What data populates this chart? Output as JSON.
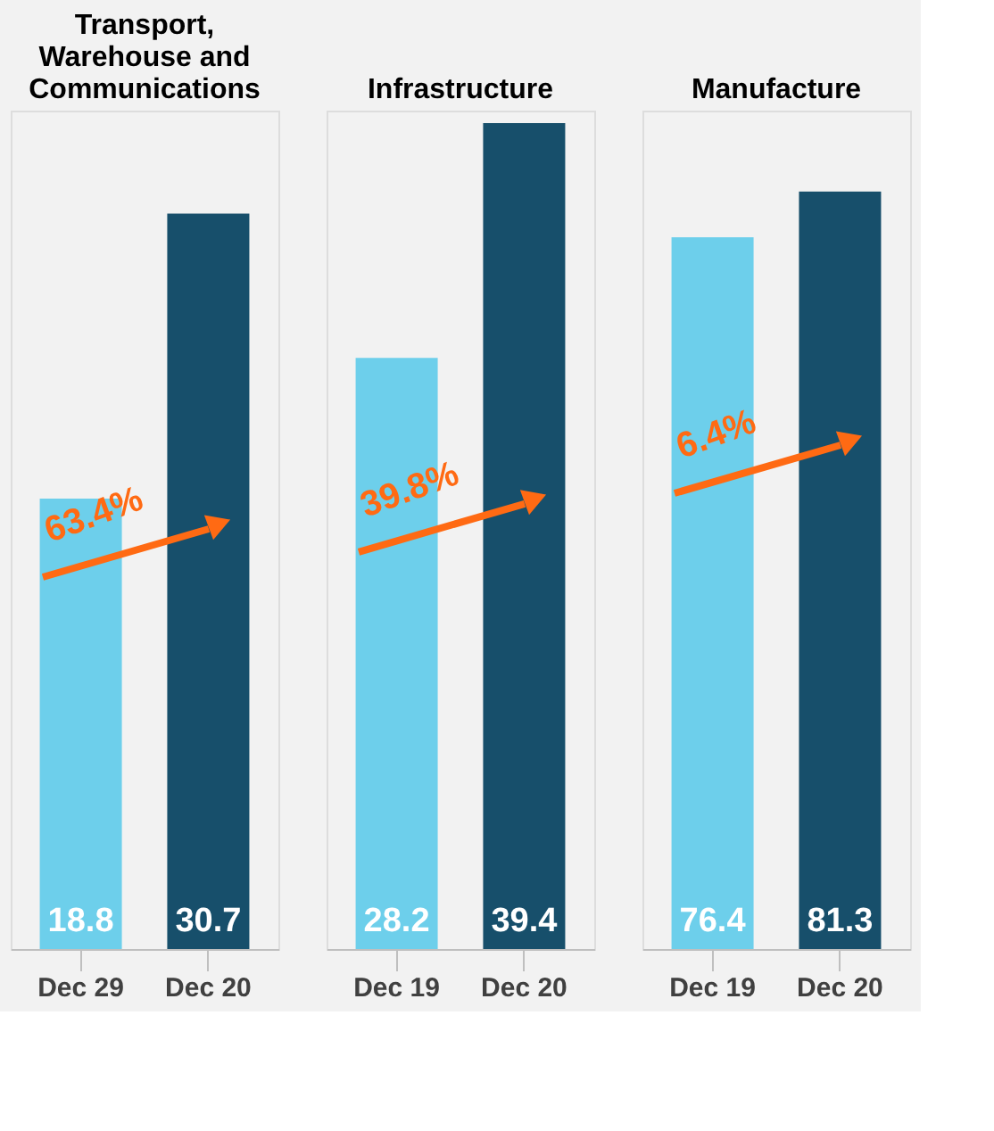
{
  "chart_data": [
    {
      "type": "bar",
      "title": "Transport,\nWarehouse and\nCommunications",
      "categories": [
        "Dec 29",
        "Dec 20"
      ],
      "values": [
        18.8,
        30.7
      ],
      "colors": [
        "#6dcfeb",
        "#174f6b"
      ],
      "data_labels": true,
      "tick_labels": "x",
      "grid": false,
      "annotations": [
        "63.4%"
      ]
    },
    {
      "type": "bar",
      "title": "Infrastructure",
      "categories": [
        "Dec 19",
        "Dec 20"
      ],
      "values": [
        28.2,
        39.4
      ],
      "colors": [
        "#6dcfeb",
        "#174f6b"
      ],
      "data_labels": true,
      "tick_labels": "x",
      "grid": false,
      "annotations": [
        "39.8%"
      ]
    },
    {
      "type": "bar",
      "title": "Manufacture",
      "categories": [
        "Dec 19",
        "Dec 20"
      ],
      "values": [
        76.4,
        81.3
      ],
      "colors": [
        "#6dcfeb",
        "#174f6b"
      ],
      "data_labels": true,
      "tick_labels": "x",
      "grid": false,
      "annotations": [
        "6.4%"
      ]
    }
  ]
}
